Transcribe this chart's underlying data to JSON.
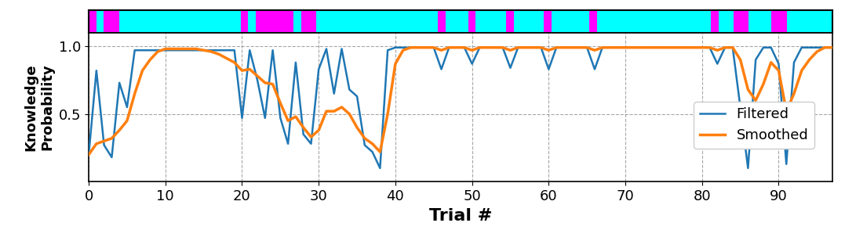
{
  "n_trials": 98,
  "answers": [
    1,
    0,
    1,
    1,
    0,
    0,
    0,
    0,
    0,
    0,
    0,
    0,
    0,
    0,
    0,
    0,
    0,
    0,
    0,
    0,
    1,
    0,
    1,
    1,
    1,
    1,
    1,
    0,
    1,
    1,
    0,
    0,
    0,
    0,
    0,
    0,
    0,
    0,
    0,
    0,
    0,
    0,
    0,
    0,
    0,
    0,
    1,
    0,
    0,
    0,
    1,
    0,
    0,
    0,
    0,
    1,
    0,
    0,
    0,
    0,
    1,
    0,
    0,
    0,
    0,
    0,
    1,
    0,
    0,
    0,
    0,
    0,
    0,
    0,
    0,
    0,
    0,
    0,
    0,
    0,
    0,
    0,
    1,
    0,
    0,
    1,
    1,
    0,
    0,
    0,
    1,
    1,
    0,
    0,
    0,
    0,
    0,
    0
  ],
  "filtered": [
    0.2,
    0.82,
    0.27,
    0.18,
    0.73,
    0.55,
    0.97,
    0.97,
    0.97,
    0.97,
    0.97,
    0.97,
    0.97,
    0.97,
    0.97,
    0.97,
    0.97,
    0.97,
    0.97,
    0.97,
    0.47,
    0.97,
    0.75,
    0.47,
    0.97,
    0.47,
    0.28,
    0.88,
    0.35,
    0.28,
    0.83,
    0.98,
    0.65,
    0.98,
    0.68,
    0.63,
    0.27,
    0.22,
    0.1,
    0.97,
    0.99,
    0.99,
    0.99,
    0.99,
    0.99,
    0.99,
    0.83,
    0.99,
    0.99,
    0.99,
    0.87,
    0.99,
    0.99,
    0.99,
    0.99,
    0.84,
    0.99,
    0.99,
    0.99,
    0.99,
    0.83,
    0.99,
    0.99,
    0.99,
    0.99,
    0.99,
    0.83,
    0.99,
    0.99,
    0.99,
    0.99,
    0.99,
    0.99,
    0.99,
    0.99,
    0.99,
    0.99,
    0.99,
    0.99,
    0.99,
    0.99,
    0.99,
    0.87,
    0.99,
    0.99,
    0.55,
    0.1,
    0.9,
    0.99,
    0.99,
    0.87,
    0.13,
    0.88,
    0.99,
    0.99,
    0.99,
    0.99,
    0.99
  ],
  "smoothed": [
    0.2,
    0.28,
    0.3,
    0.32,
    0.38,
    0.45,
    0.65,
    0.82,
    0.9,
    0.96,
    0.98,
    0.98,
    0.98,
    0.98,
    0.98,
    0.97,
    0.96,
    0.94,
    0.91,
    0.88,
    0.82,
    0.83,
    0.78,
    0.73,
    0.72,
    0.58,
    0.45,
    0.48,
    0.4,
    0.33,
    0.38,
    0.52,
    0.52,
    0.55,
    0.5,
    0.4,
    0.32,
    0.28,
    0.22,
    0.5,
    0.87,
    0.97,
    0.99,
    0.99,
    0.99,
    0.99,
    0.97,
    0.99,
    0.99,
    0.99,
    0.97,
    0.99,
    0.99,
    0.99,
    0.99,
    0.97,
    0.99,
    0.99,
    0.99,
    0.99,
    0.97,
    0.99,
    0.99,
    0.99,
    0.99,
    0.99,
    0.97,
    0.99,
    0.99,
    0.99,
    0.99,
    0.99,
    0.99,
    0.99,
    0.99,
    0.99,
    0.99,
    0.99,
    0.99,
    0.99,
    0.99,
    0.99,
    0.97,
    0.99,
    0.99,
    0.9,
    0.68,
    0.6,
    0.72,
    0.88,
    0.82,
    0.52,
    0.65,
    0.82,
    0.9,
    0.96,
    0.99,
    0.99
  ],
  "filtered_color": "#1f77b4",
  "smoothed_color": "#ff7f0e",
  "correct_color": "#00ffff",
  "incorrect_color": "#ff00ff",
  "xlabel": "Trial #",
  "ylabel": "Knowledge\nProbability",
  "xlim": [
    0,
    97
  ],
  "ylim": [
    0.0,
    1.1
  ],
  "yticks": [
    0.5,
    1.0
  ],
  "xticks": [
    0,
    10,
    20,
    30,
    40,
    50,
    60,
    70,
    80,
    90
  ],
  "legend_labels": [
    "Filtered",
    "Smoothed"
  ],
  "filtered_lw": 1.8,
  "smoothed_lw": 2.5,
  "xlabel_fontsize": 16,
  "ylabel_fontsize": 13,
  "tick_fontsize": 13,
  "legend_fontsize": 13
}
